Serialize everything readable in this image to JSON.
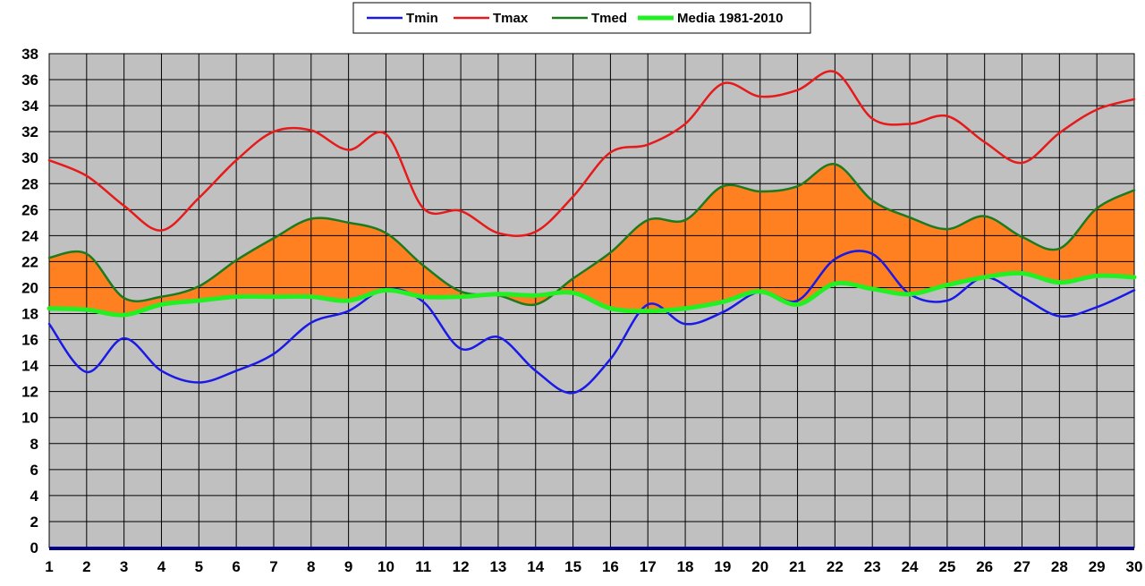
{
  "chart_data": {
    "type": "line",
    "x": [
      1,
      2,
      3,
      4,
      5,
      6,
      7,
      8,
      9,
      10,
      11,
      12,
      13,
      14,
      15,
      16,
      17,
      18,
      19,
      20,
      21,
      22,
      23,
      24,
      25,
      26,
      27,
      28,
      29,
      30
    ],
    "ylim": [
      0,
      38
    ],
    "ytick_step": 2,
    "grid": true,
    "legend_position": "top",
    "background_color": "#c0c0c0",
    "fill_between": {
      "upper": "Tmed",
      "lower": "Media 1981-2010",
      "color": "#ff8020"
    },
    "series": [
      {
        "name": "Tmin",
        "color": "#1a1ae6",
        "width": 2.5,
        "values": [
          17.2,
          13.5,
          16.1,
          13.6,
          12.7,
          13.6,
          14.9,
          17.3,
          18.2,
          19.9,
          18.9,
          15.3,
          16.2,
          13.6,
          11.9,
          14.5,
          18.7,
          17.2,
          18.1,
          19.7,
          19.0,
          22.2,
          22.6,
          19.5,
          19.0,
          20.8,
          19.3,
          17.8,
          18.5,
          19.8
        ]
      },
      {
        "name": "Tmax",
        "color": "#e61a1a",
        "width": 2.5,
        "values": [
          29.8,
          28.6,
          26.3,
          24.4,
          26.9,
          29.8,
          32.0,
          32.1,
          30.6,
          31.8,
          26.1,
          25.9,
          24.2,
          24.3,
          27.0,
          30.4,
          31.0,
          32.6,
          35.7,
          34.7,
          35.2,
          36.6,
          33.0,
          32.6,
          33.2,
          31.2,
          29.6,
          31.9,
          33.7,
          34.5
        ]
      },
      {
        "name": "Tmed",
        "color": "#1e7a1e",
        "width": 2.5,
        "values": [
          22.3,
          22.6,
          19.2,
          19.3,
          20.1,
          22.1,
          23.8,
          25.3,
          25.0,
          24.2,
          21.7,
          19.7,
          19.4,
          18.7,
          20.7,
          22.7,
          25.2,
          25.2,
          27.8,
          27.4,
          27.8,
          29.5,
          26.7,
          25.4,
          24.5,
          25.5,
          23.9,
          23.0,
          26.1,
          27.5
        ]
      },
      {
        "name": "Media 1981-2010",
        "color": "#22f022",
        "width": 5,
        "values": [
          18.4,
          18.3,
          17.9,
          18.7,
          19.0,
          19.3,
          19.3,
          19.3,
          19.0,
          19.8,
          19.3,
          19.3,
          19.5,
          19.4,
          19.6,
          18.4,
          18.2,
          18.4,
          18.9,
          19.7,
          18.7,
          20.3,
          19.9,
          19.5,
          20.2,
          20.8,
          21.1,
          20.4,
          20.9,
          20.8
        ]
      }
    ]
  }
}
